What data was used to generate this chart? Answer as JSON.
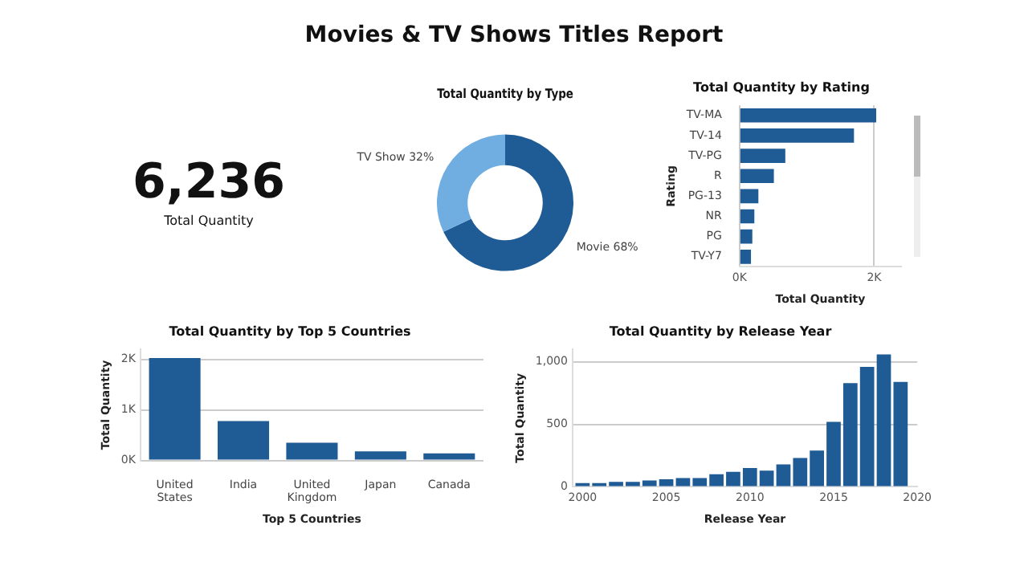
{
  "chart_data": [
    {
      "type": "other",
      "title": "Movies & TV Shows Titles Report",
      "annotations": [
        "6,236",
        "Total Quantity"
      ]
    },
    {
      "type": "donut",
      "title": "Total Quantity by Type",
      "categories": [
        "Movie",
        "TV Show"
      ],
      "values": [
        68,
        32
      ],
      "colors": [
        "#1f5b94",
        "#70aee2"
      ],
      "value_labels": [
        "68%",
        "32%"
      ],
      "legend": false
    },
    {
      "type": "bar",
      "orientation": "horizontal",
      "title": "Total Quantity by Rating",
      "xlabel": "Total Quantity",
      "ylabel": "Rating",
      "categories": [
        "TV-MA",
        "TV-14",
        "TV-PG",
        "R",
        "PG-13",
        "NR",
        "PG",
        "TV-Y7"
      ],
      "values": [
        2030,
        1700,
        680,
        510,
        280,
        220,
        190,
        170
      ],
      "color": "#1f5b94",
      "xlim": [
        0,
        2400
      ],
      "xticks": [
        {
          "value": 0,
          "label": "0K"
        },
        {
          "value": 2000,
          "label": "2K"
        }
      ],
      "grid": "x",
      "legend": false
    },
    {
      "type": "bar",
      "title": "Total Quantity by Top 5 Countries",
      "xlabel": "Top 5 Countries",
      "ylabel": "Total Quantity",
      "categories": [
        "United States",
        "India",
        "United Kingdom",
        "Japan",
        "Canada"
      ],
      "values": [
        2030,
        780,
        350,
        180,
        140
      ],
      "color": "#1f5b94",
      "ylim": [
        0,
        2200
      ],
      "yticks": [
        {
          "value": 0,
          "label": "0K"
        },
        {
          "value": 1000,
          "label": "1K"
        },
        {
          "value": 2000,
          "label": "2K"
        }
      ],
      "grid": "y",
      "legend": false
    },
    {
      "type": "bar",
      "title": "Total Quantity by Release Year",
      "xlabel": "Release Year",
      "ylabel": "Total Quantity",
      "x": [
        2000,
        2001,
        2002,
        2003,
        2004,
        2005,
        2006,
        2007,
        2008,
        2009,
        2010,
        2011,
        2012,
        2013,
        2014,
        2015,
        2016,
        2017,
        2018,
        2019
      ],
      "values": [
        30,
        30,
        40,
        40,
        50,
        60,
        70,
        70,
        100,
        120,
        150,
        130,
        180,
        230,
        290,
        520,
        830,
        960,
        1060,
        840
      ],
      "color": "#1f5b94",
      "xlim": [
        1999.4,
        2020
      ],
      "xticks": [
        2000,
        2005,
        2010,
        2015,
        2020
      ],
      "ylim": [
        0,
        1100
      ],
      "yticks": [
        0,
        500,
        {
          "value": 1000,
          "label": "1,000"
        }
      ],
      "grid": "y",
      "legend": false
    }
  ]
}
